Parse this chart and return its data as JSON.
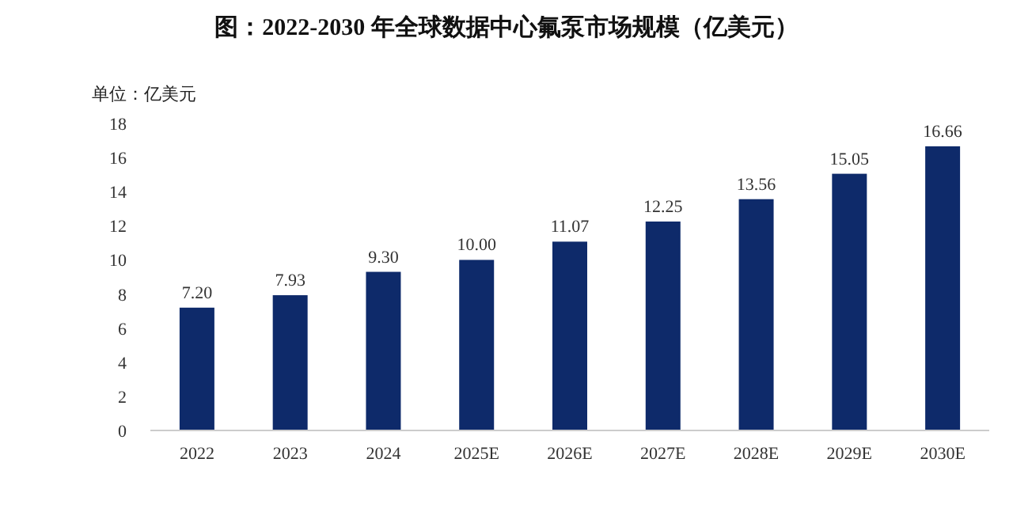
{
  "chart_data": {
    "type": "bar",
    "title": "图：2022-2030 年全球数据中心氟泵市场规模（亿美元）",
    "ylabel": "单位：亿美元",
    "categories": [
      "2022",
      "2023",
      "2024",
      "2025E",
      "2026E",
      "2027E",
      "2028E",
      "2029E",
      "2030E"
    ],
    "values": [
      7.2,
      7.93,
      9.3,
      10.0,
      11.07,
      12.25,
      13.56,
      15.05,
      16.66
    ],
    "value_labels": [
      "7.20",
      "7.93",
      "9.30",
      "10.00",
      "11.07",
      "12.25",
      "13.56",
      "15.05",
      "16.66"
    ],
    "color": "#0e2a6a",
    "ylim": [
      0,
      18
    ],
    "yticks": [
      0,
      2,
      4,
      6,
      8,
      10,
      12,
      14,
      16,
      18
    ],
    "grid": false
  }
}
